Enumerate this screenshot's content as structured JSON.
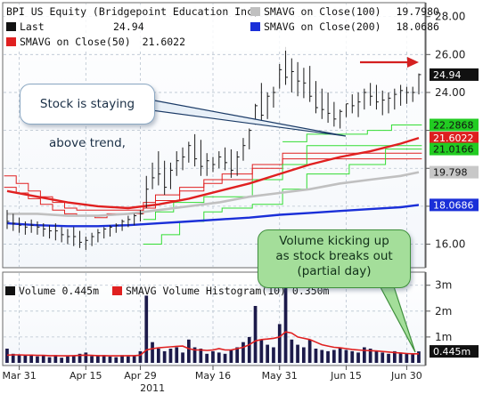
{
  "chart_data": {
    "type": "line",
    "ticker": "BPI US Equity",
    "title": "BPI US Equity (Bridgepoint Education Inc)",
    "legend": [
      {
        "label": "Last",
        "value": "24.94",
        "color": "#111111"
      },
      {
        "label": "SMAVG on Close(50)",
        "value": "21.6022",
        "color": "#e02020"
      },
      {
        "label": "SMAVG on Close(100)",
        "value": "19.7980",
        "color": "#c0c0c0"
      },
      {
        "label": "SMAVG on Close(200)",
        "value": "18.0686",
        "color": "#1a2fd8"
      }
    ],
    "x_tick_labels": [
      "Mar 31",
      "Apr 15",
      "Apr 29",
      "May 16",
      "May 31",
      "Jun 15",
      "Jun 30"
    ],
    "x_tick_index": [
      2,
      13,
      22,
      34,
      45,
      56,
      66
    ],
    "year_label": "2011",
    "n_days": 69,
    "price_axis": {
      "ticks": [
        16,
        18,
        20,
        22,
        24,
        26,
        28
      ],
      "labeled_ticks": [
        "16.00",
        "24.00",
        "26.00",
        "28.00"
      ],
      "ylim": [
        14.9,
        28.5
      ]
    },
    "ohlc": {
      "high": [
        17.8,
        17.6,
        17.4,
        17.2,
        17.3,
        17.2,
        17.1,
        17.0,
        17.1,
        16.9,
        16.8,
        16.9,
        16.7,
        16.4,
        16.6,
        16.8,
        16.9,
        17.0,
        17.1,
        17.3,
        17.5,
        17.6,
        17.8,
        19.6,
        20.3,
        20.9,
        20.4,
        20.3,
        20.9,
        21.1,
        21.4,
        21.8,
        21.5,
        20.8,
        20.6,
        20.9,
        21.1,
        21.0,
        20.9,
        21.6,
        22.1,
        23.4,
        24.5,
        24.0,
        24.3,
        25.5,
        26.4,
        25.8,
        25.6,
        25.3,
        25.4,
        24.6,
        24.2,
        24.0,
        23.5,
        23.1,
        23.4,
        23.9,
        24.0,
        24.2,
        24.5,
        24.4,
        24.1,
        24.0,
        24.2,
        24.4,
        24.3,
        24.3,
        25.0
      ],
      "low": [
        16.8,
        16.7,
        16.6,
        16.5,
        16.6,
        16.5,
        16.4,
        16.3,
        16.2,
        16.1,
        16.0,
        15.9,
        15.8,
        15.7,
        15.9,
        16.1,
        16.3,
        16.4,
        16.6,
        16.7,
        16.9,
        17.0,
        17.2,
        17.9,
        18.9,
        19.1,
        18.6,
        18.9,
        19.6,
        19.9,
        20.3,
        20.1,
        19.6,
        19.6,
        19.8,
        20.0,
        19.9,
        19.5,
        19.6,
        20.4,
        21.0,
        22.3,
        22.4,
        22.6,
        23.2,
        24.2,
        24.4,
        24.0,
        23.8,
        23.7,
        23.5,
        22.9,
        22.6,
        22.4,
        22.2,
        22.1,
        22.7,
        22.9,
        22.7,
        23.1,
        23.3,
        23.1,
        22.8,
        22.9,
        23.1,
        23.3,
        23.4,
        23.5,
        23.9
      ],
      "close": [
        17.2,
        17.1,
        17.0,
        16.9,
        17.0,
        16.9,
        16.8,
        16.7,
        16.7,
        16.5,
        16.4,
        16.4,
        16.1,
        16.2,
        16.4,
        16.6,
        16.8,
        16.9,
        17.0,
        17.2,
        17.3,
        17.5,
        17.6,
        18.9,
        19.5,
        19.7,
        19.0,
        19.9,
        20.4,
        20.6,
        21.2,
        20.5,
        20.1,
        20.4,
        20.2,
        20.6,
        20.3,
        19.9,
        20.6,
        21.2,
        22.0,
        23.3,
        22.8,
        23.8,
        24.0,
        25.2,
        24.8,
        25.1,
        24.6,
        24.5,
        23.8,
        23.2,
        23.1,
        22.9,
        22.6,
        23.0,
        23.4,
        23.3,
        23.5,
        24.0,
        23.8,
        23.5,
        23.6,
        23.7,
        23.9,
        24.1,
        24.0,
        24.0,
        24.94
      ]
    },
    "series": [
      {
        "name": "SMAVG on Close(50)",
        "color": "#e02020",
        "x": [
          0,
          5,
          10,
          15,
          20,
          25,
          30,
          35,
          40,
          45,
          50,
          55,
          60,
          65,
          68
        ],
        "y": [
          18.8,
          18.5,
          18.2,
          18.0,
          17.9,
          18.1,
          18.4,
          18.8,
          19.2,
          19.7,
          20.2,
          20.6,
          20.9,
          21.3,
          21.6022
        ]
      },
      {
        "name": "SMAVG on Close(100)",
        "color": "#c0c0c0",
        "x": [
          0,
          5,
          10,
          15,
          20,
          25,
          30,
          35,
          40,
          45,
          50,
          55,
          60,
          65,
          68
        ],
        "y": [
          17.6,
          17.6,
          17.5,
          17.5,
          17.6,
          17.8,
          18.0,
          18.2,
          18.5,
          18.7,
          18.9,
          19.2,
          19.4,
          19.6,
          19.798
        ]
      },
      {
        "name": "SMAVG on Close(200)",
        "color": "#1a2fd8",
        "x": [
          0,
          5,
          10,
          15,
          20,
          25,
          30,
          35,
          40,
          45,
          50,
          55,
          60,
          65,
          68
        ],
        "y": [
          17.1,
          17.0,
          16.95,
          16.95,
          17.0,
          17.1,
          17.2,
          17.3,
          17.4,
          17.55,
          17.65,
          17.75,
          17.85,
          17.95,
          18.0686
        ]
      }
    ],
    "trend_steps": [
      {
        "color": "#e02020",
        "y": [
          19.0,
          19.0,
          18.7,
          18.7,
          18.4,
          18.4,
          18.1,
          18.1,
          17.8,
          17.8,
          17.6,
          17.6,
          17.5,
          17.5,
          17.5,
          17.4,
          17.4,
          17.6,
          17.6,
          17.6,
          17.6,
          17.6,
          17.6,
          17.9,
          17.9,
          18.3,
          18.3,
          18.3,
          18.3,
          18.8,
          18.8,
          18.8,
          18.8,
          19.2,
          19.2,
          19.2,
          19.4,
          19.4,
          19.4,
          19.4,
          19.4,
          20.0,
          20.0,
          20.0,
          20.0,
          20.0,
          20.5,
          20.5,
          20.5,
          20.5,
          20.5,
          20.5,
          20.5,
          20.5,
          20.5,
          20.5,
          20.5,
          20.5,
          20.5,
          20.5,
          20.5,
          20.5,
          20.5,
          20.5,
          20.5,
          20.5,
          20.5,
          20.5,
          20.5
        ]
      },
      {
        "color": "#e02020",
        "y": [
          19.6,
          19.6,
          19.2,
          19.2,
          18.8,
          18.8,
          18.5,
          18.5,
          18.2,
          18.2,
          17.9,
          17.9,
          17.8,
          17.8,
          17.8,
          17.8,
          17.8,
          17.8,
          17.8,
          17.8,
          17.8,
          17.8,
          17.8,
          18.2,
          18.2,
          18.6,
          18.6,
          18.6,
          18.6,
          19.0,
          19.0,
          19.0,
          19.0,
          19.4,
          19.4,
          19.4,
          19.7,
          19.7,
          19.7,
          19.7,
          19.7,
          20.2,
          20.2,
          20.2,
          20.2,
          20.2,
          20.8,
          20.8,
          20.8,
          20.8,
          20.8,
          20.8,
          20.8,
          20.8,
          20.8,
          20.8,
          20.8,
          20.8,
          20.8,
          20.8,
          20.8,
          20.8,
          20.8,
          20.8,
          20.8,
          20.8,
          20.8,
          20.8,
          20.8
        ]
      },
      {
        "color": "#33dd33",
        "y": [
          null,
          null,
          null,
          null,
          null,
          null,
          null,
          null,
          null,
          null,
          null,
          null,
          null,
          null,
          null,
          null,
          null,
          null,
          null,
          null,
          null,
          null,
          null,
          17.3,
          17.3,
          17.7,
          17.7,
          17.7,
          18.2,
          18.2,
          18.2,
          18.2,
          18.2,
          18.5,
          18.5,
          18.5,
          18.5,
          18.5,
          18.5,
          18.5,
          18.5,
          19.4,
          19.4,
          19.4,
          19.4,
          19.4,
          20.2,
          20.2,
          20.2,
          20.2,
          21.2,
          21.2,
          21.2,
          21.2,
          21.2,
          21.2,
          21.2,
          21.2,
          21.2,
          21.2,
          21.2,
          21.2,
          21.2,
          21.2,
          21.2,
          21.2,
          21.2,
          21.2,
          21.2
        ]
      },
      {
        "color": "#33dd33",
        "y": [
          null,
          null,
          null,
          null,
          null,
          null,
          null,
          null,
          null,
          null,
          null,
          null,
          null,
          null,
          null,
          null,
          null,
          null,
          null,
          null,
          null,
          null,
          null,
          16.0,
          16.0,
          16.0,
          16.5,
          16.5,
          16.5,
          17.2,
          17.2,
          17.2,
          17.2,
          17.7,
          17.7,
          17.7,
          17.9,
          17.9,
          17.9,
          17.9,
          17.9,
          18.1,
          18.1,
          18.1,
          18.1,
          18.1,
          18.9,
          18.9,
          18.9,
          18.9,
          19.7,
          19.7,
          19.7,
          19.7,
          19.7,
          19.7,
          19.7,
          20.2,
          20.2,
          20.2,
          20.2,
          20.2,
          20.2,
          21.0166,
          21.0166,
          21.0166,
          21.0166,
          21.0166,
          21.0166
        ]
      },
      {
        "color": "#33dd33",
        "y": [
          null,
          null,
          null,
          null,
          null,
          null,
          null,
          null,
          null,
          null,
          null,
          null,
          null,
          null,
          null,
          null,
          null,
          null,
          null,
          null,
          null,
          null,
          null,
          null,
          null,
          null,
          null,
          null,
          null,
          null,
          null,
          null,
          null,
          null,
          null,
          null,
          null,
          null,
          null,
          null,
          null,
          null,
          null,
          null,
          null,
          null,
          21.4,
          21.4,
          21.4,
          21.4,
          21.8,
          21.8,
          21.8,
          21.8,
          21.8,
          21.8,
          21.8,
          21.8,
          21.8,
          21.8,
          22.0,
          22.0,
          22.0,
          22.0,
          22.2868,
          22.2868,
          22.2868,
          22.2868,
          22.2868
        ]
      }
    ],
    "price_tags": [
      {
        "label": "24.94",
        "value": 24.94,
        "bg": "#111111",
        "fg": "#ffffff"
      },
      {
        "label": "22.2868",
        "value": 22.2868,
        "bg": "#22cc22",
        "fg": "#111111"
      },
      {
        "label": "21.6022",
        "value": 21.6022,
        "bg": "#dd1f1f",
        "fg": "#ffffff"
      },
      {
        "label": "21.0166",
        "value": 21.0166,
        "bg": "#22cc22",
        "fg": "#111111"
      },
      {
        "label": "19.798",
        "value": 19.798,
        "bg": "#c8c8c8",
        "fg": "#111111"
      },
      {
        "label": "18.0686",
        "value": 18.0686,
        "bg": "#1a2fd8",
        "fg": "#ffffff"
      }
    ],
    "volume": {
      "unit": "m",
      "label": "Volume",
      "last": "0.445m",
      "hist_label": "SMAVG Volume Histogram(10)",
      "hist_value": "0.350m",
      "axis_ticks": [
        "1m",
        "2m",
        "3m"
      ],
      "tag": "0.445m",
      "values": [
        0.55,
        0.35,
        0.3,
        0.28,
        0.32,
        0.25,
        0.3,
        0.22,
        0.3,
        0.2,
        0.25,
        0.28,
        0.35,
        0.4,
        0.26,
        0.28,
        0.3,
        0.24,
        0.22,
        0.3,
        0.25,
        0.28,
        0.45,
        2.6,
        0.8,
        0.55,
        0.45,
        0.55,
        0.6,
        0.4,
        0.9,
        0.6,
        0.55,
        0.35,
        0.45,
        0.4,
        0.35,
        0.5,
        0.6,
        0.8,
        1.0,
        2.2,
        0.9,
        0.7,
        0.6,
        1.5,
        3.0,
        0.9,
        0.7,
        0.6,
        0.9,
        0.55,
        0.5,
        0.45,
        0.5,
        0.6,
        0.5,
        0.45,
        0.4,
        0.6,
        0.55,
        0.45,
        0.4,
        0.35,
        0.45,
        0.4,
        0.38,
        0.35,
        0.445
      ],
      "avg": [
        0.3,
        0.31,
        0.31,
        0.3,
        0.3,
        0.29,
        0.29,
        0.28,
        0.28,
        0.27,
        0.27,
        0.28,
        0.29,
        0.3,
        0.29,
        0.28,
        0.28,
        0.27,
        0.27,
        0.27,
        0.28,
        0.28,
        0.3,
        0.5,
        0.55,
        0.58,
        0.6,
        0.62,
        0.64,
        0.65,
        0.55,
        0.5,
        0.5,
        0.48,
        0.5,
        0.55,
        0.5,
        0.5,
        0.55,
        0.6,
        0.7,
        0.85,
        0.9,
        0.92,
        0.95,
        1.0,
        1.2,
        1.15,
        1.0,
        0.95,
        0.9,
        0.8,
        0.7,
        0.65,
        0.6,
        0.58,
        0.55,
        0.52,
        0.5,
        0.48,
        0.47,
        0.46,
        0.44,
        0.42,
        0.4,
        0.38,
        0.36,
        0.35,
        0.35
      ],
      "ylim": [
        0,
        3.3
      ]
    }
  },
  "callouts": {
    "trend": "Stock is staying above trend,",
    "volume": [
      "Volume kicking up",
      "as stock breaks out",
      "(partial day)"
    ]
  }
}
